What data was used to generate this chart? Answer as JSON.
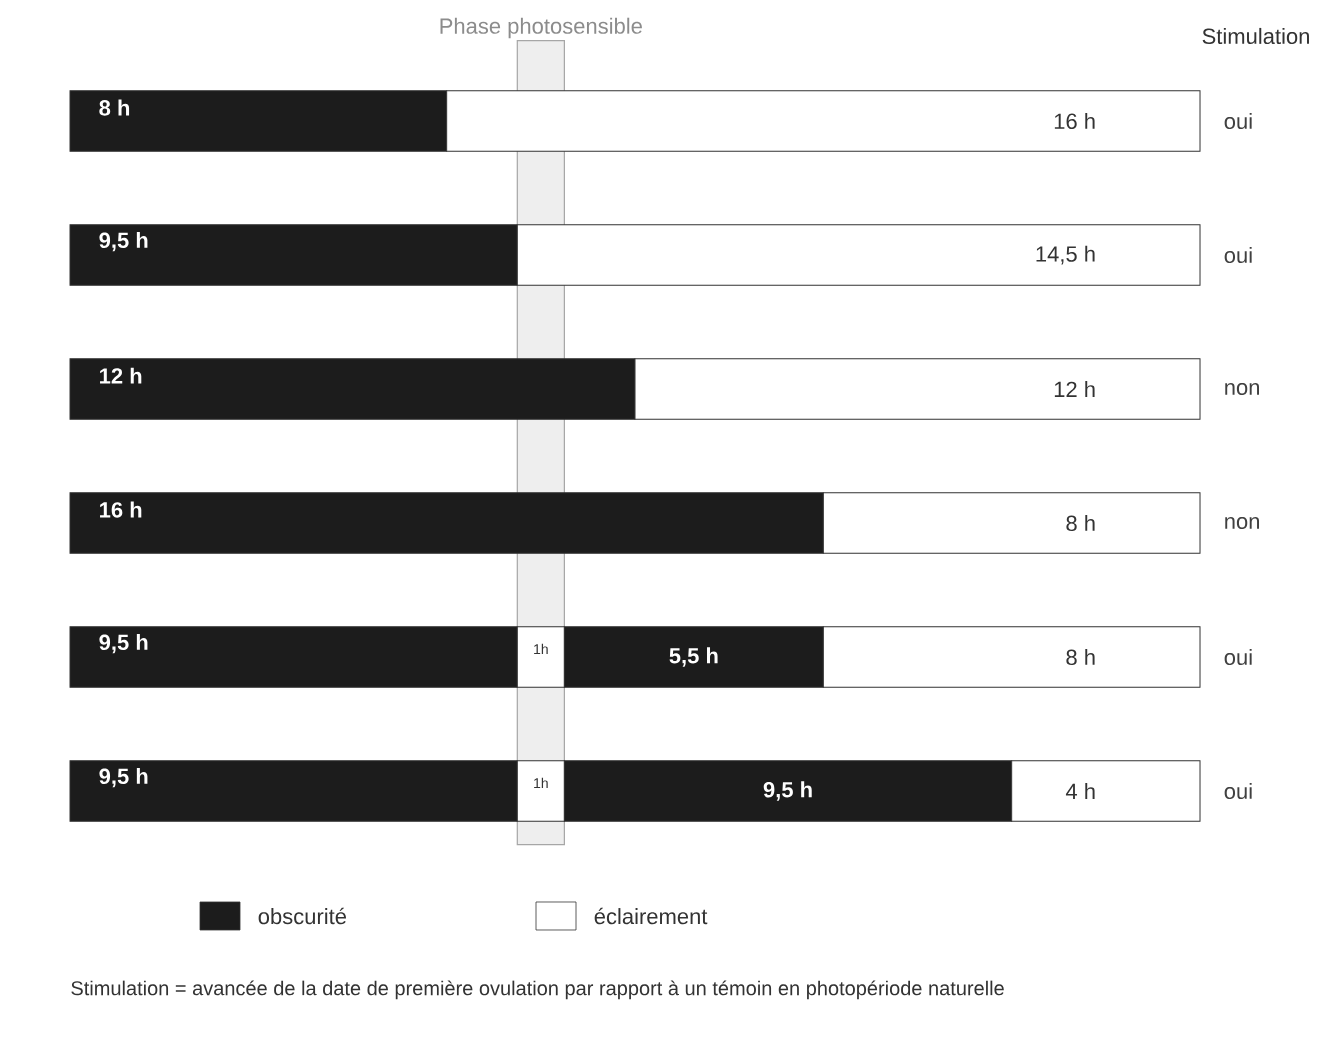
{
  "chart_data": {
    "type": "bar",
    "orientation": "horizontal",
    "stacked": true,
    "categories": [
      "oui",
      "oui",
      "non",
      "non",
      "oui",
      "oui"
    ],
    "xlim": [
      0,
      24
    ],
    "tick_labels": "y",
    "legend": "bottom",
    "series": [
      {
        "name": "obscurité",
        "color": "#1c1c1c",
        "values": [
          8,
          9.5,
          12,
          16,
          9.5,
          9.5
        ],
        "value_labels": [
          "8 h",
          "9,5 h",
          "12 h",
          "16 h",
          "9,5 h",
          "9,5 h"
        ]
      },
      {
        "name": "éclairement",
        "color": "#ffffff",
        "values": [
          16,
          14.5,
          12,
          8,
          1,
          1
        ],
        "value_labels": [
          "16 h",
          "14,5 h",
          "12 h",
          "8 h",
          "1h",
          "1h"
        ]
      },
      {
        "color": "#1c1c1c",
        "values": [
          null,
          null,
          null,
          null,
          5.5,
          9.5
        ],
        "value_labels": [
          null,
          null,
          null,
          null,
          "5,5 h",
          "9,5 h"
        ]
      },
      {
        "color": "#ffffff",
        "values": [
          null,
          null,
          null,
          null,
          8,
          4
        ],
        "value_labels": [
          null,
          null,
          null,
          null,
          "8 h",
          "4 h"
        ]
      }
    ],
    "bands": [
      {
        "axis": "x",
        "from": 9.5,
        "to": 10.5,
        "label": "Phase photosensible",
        "color": "#eeeeee"
      }
    ],
    "annotations": [
      "Stimulation",
      "Stimulation = avancée de la date de première ovulation par rapport à un témoin en photopériode naturelle"
    ]
  }
}
